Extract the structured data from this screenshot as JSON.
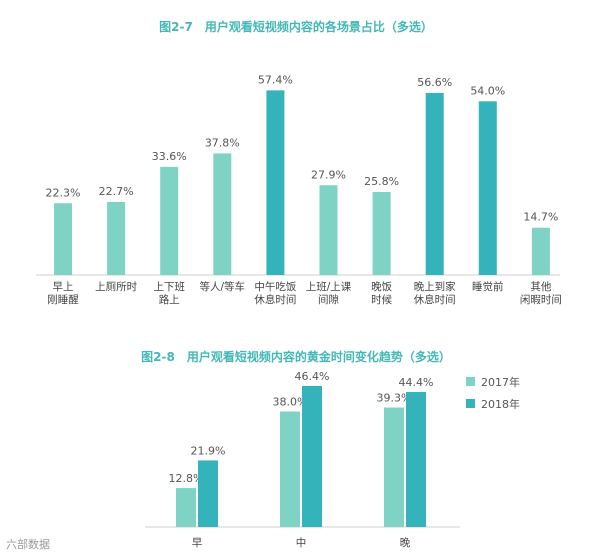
{
  "colors": {
    "light": "#7fd3c4",
    "dark": "#35b3ba",
    "title": "#45b7b7",
    "axis": "#cfcfcf"
  },
  "watermark": "六部数据",
  "chart_data": [
    {
      "type": "bar",
      "title": "图2-7　用户观看短视频内容的各场景占比（多选）",
      "categories": [
        [
          "早上",
          "刚睡醒"
        ],
        [
          "上厕所时"
        ],
        [
          "上下班",
          "路上"
        ],
        [
          "等人/等车"
        ],
        [
          "中午吃饭",
          "休息时间"
        ],
        [
          "上班/上课",
          "间隙"
        ],
        [
          "晚饭",
          "时候"
        ],
        [
          "晚上到家",
          "休息时间"
        ],
        [
          "睡觉前"
        ],
        [
          "其他",
          "闲暇时间"
        ]
      ],
      "values": [
        22.3,
        22.7,
        33.6,
        37.8,
        57.4,
        27.9,
        25.8,
        56.6,
        54.0,
        14.7
      ],
      "labels": [
        "22.3%",
        "22.7%",
        "33.6%",
        "37.8%",
        "57.4%",
        "27.9%",
        "25.8%",
        "56.6%",
        "54.0%",
        "14.7%"
      ],
      "highlight": [
        false,
        false,
        false,
        false,
        true,
        false,
        false,
        true,
        true,
        false
      ],
      "ylim": [
        0,
        60
      ]
    },
    {
      "type": "bar",
      "title": "图2-8　用户观看短视频内容的黄金时间变化趋势（多选）",
      "categories": [
        "早",
        "中",
        "晚"
      ],
      "series": [
        {
          "name": "2017年",
          "values": [
            12.8,
            38.0,
            39.3
          ],
          "labels": [
            "12.8%",
            "38.0%",
            "39.3%"
          ]
        },
        {
          "name": "2018年",
          "values": [
            21.9,
            46.4,
            44.4
          ],
          "labels": [
            "21.9%",
            "46.4%",
            "44.4%"
          ]
        }
      ],
      "legend": "top-right",
      "ylim": [
        0,
        50
      ]
    }
  ]
}
